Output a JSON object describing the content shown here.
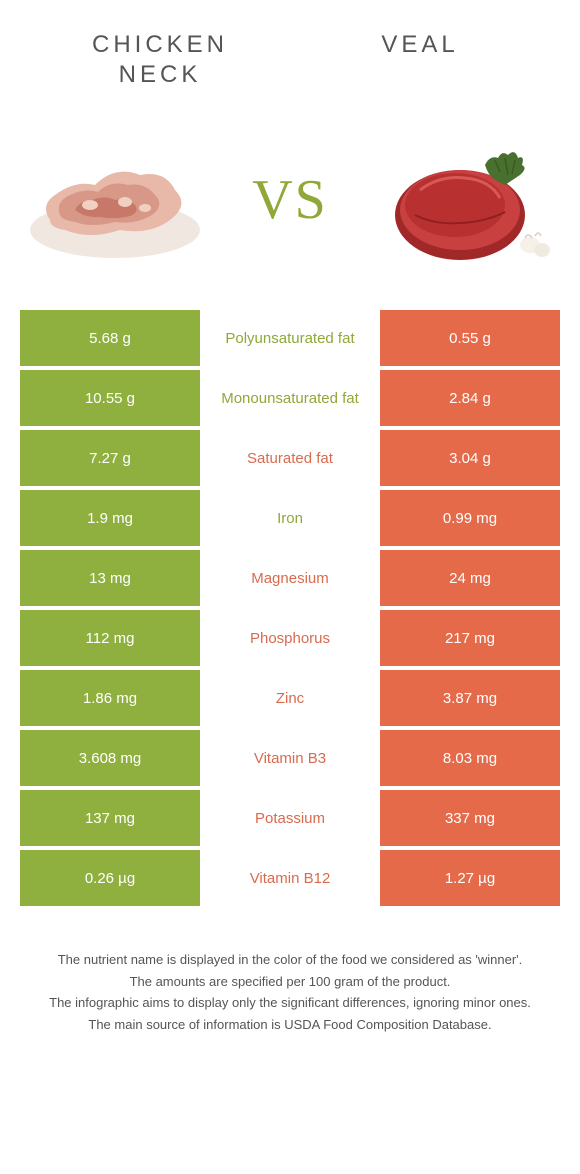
{
  "header": {
    "left_title": "CHICKEN NECK",
    "right_title": "VEAL",
    "vs": "VS"
  },
  "colors": {
    "left": "#8fb03e",
    "right": "#e46a4a",
    "left_text": "#8fa838",
    "right_text": "#d96b4f",
    "background": "#ffffff"
  },
  "rows": [
    {
      "left": "5.68 g",
      "label": "Polyunsaturated fat",
      "right": "0.55 g",
      "winner": "left"
    },
    {
      "left": "10.55 g",
      "label": "Monounsaturated fat",
      "right": "2.84 g",
      "winner": "left"
    },
    {
      "left": "7.27 g",
      "label": "Saturated fat",
      "right": "3.04 g",
      "winner": "right"
    },
    {
      "left": "1.9 mg",
      "label": "Iron",
      "right": "0.99 mg",
      "winner": "left"
    },
    {
      "left": "13 mg",
      "label": "Magnesium",
      "right": "24 mg",
      "winner": "right"
    },
    {
      "left": "112 mg",
      "label": "Phosphorus",
      "right": "217 mg",
      "winner": "right"
    },
    {
      "left": "1.86 mg",
      "label": "Zinc",
      "right": "3.87 mg",
      "winner": "right"
    },
    {
      "left": "3.608 mg",
      "label": "Vitamin B3",
      "right": "8.03 mg",
      "winner": "right"
    },
    {
      "left": "137 mg",
      "label": "Potassium",
      "right": "337 mg",
      "winner": "right"
    },
    {
      "left": "0.26 µg",
      "label": "Vitamin B12",
      "right": "1.27 µg",
      "winner": "right"
    }
  ],
  "footer": {
    "line1": "The nutrient name is displayed in the color of the food we considered as 'winner'.",
    "line2": "The amounts are specified per 100 gram of the product.",
    "line3": "The infographic aims to display only the significant differences, ignoring minor ones.",
    "line4": "The main source of information is USDA Food Composition Database."
  }
}
